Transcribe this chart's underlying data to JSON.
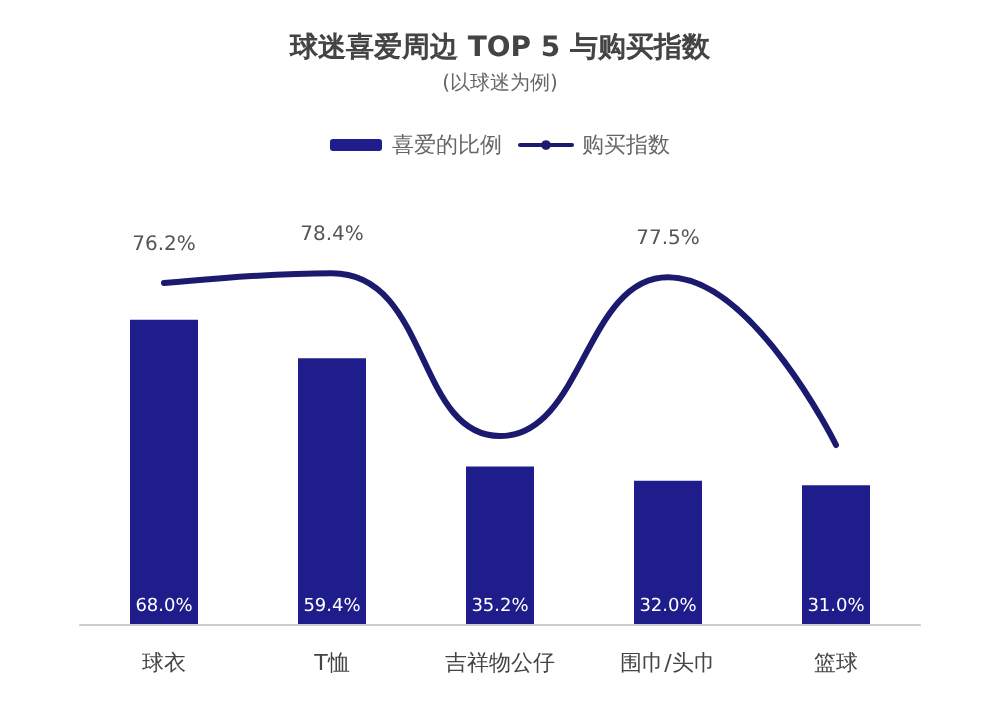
{
  "chart_data": {
    "type": "bar",
    "title": "球迷喜爱周边 TOP 5 与购买指数",
    "subtitle": "(以球迷为例)",
    "categories": [
      "球衣",
      "T恤",
      "吉祥物公仔",
      "围巾/头巾",
      "篮球"
    ],
    "tick_labels": "x",
    "grid": false,
    "legend": "top",
    "series": [
      {
        "name": "喜爱的比例",
        "color": "#1f1d8c",
        "values": [
          68.0,
          59.4,
          35.2,
          32.0,
          31.0
        ],
        "value_labels": [
          "68.0%",
          "59.4%",
          "35.2%",
          "32.0%",
          "31.0%"
        ]
      },
      {
        "name": "购买指数",
        "type": "line",
        "color": "#1c1a6e",
        "values": [
          76.2,
          78.4,
          42,
          77.5,
          40
        ],
        "value_labels": [
          "76.2%",
          "78.4%",
          null,
          "77.5%",
          null
        ],
        "marker": "none",
        "line_style": "solid"
      }
    ]
  }
}
